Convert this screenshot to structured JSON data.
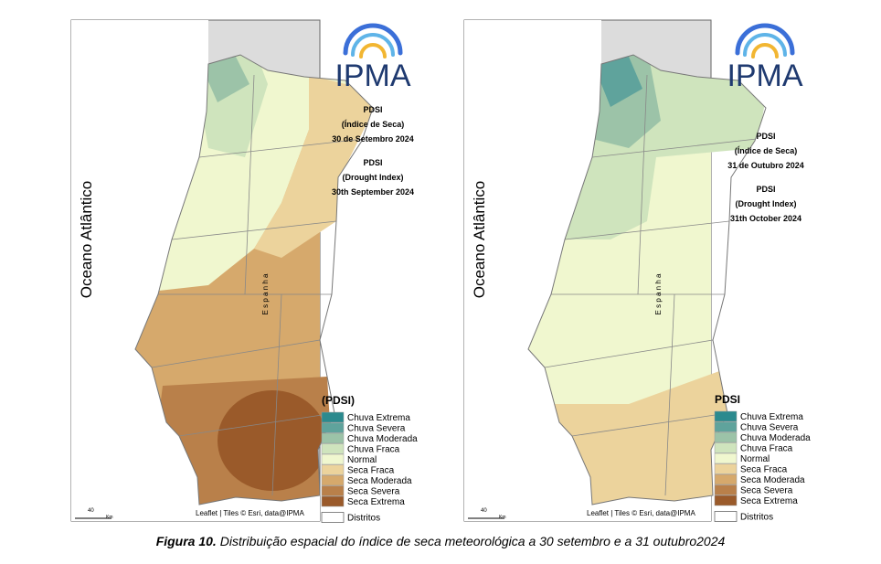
{
  "maps": [
    {
      "ocean_label": "Oceano Atlântico",
      "country_label": "E s p a n h a",
      "logo": "IPMA",
      "info_pt": [
        "PDSI",
        "(Índice de Seca)",
        "30 de Setembro 2024"
      ],
      "info_en": [
        "PDSI",
        "(Drought Index)",
        "30th September 2024"
      ],
      "legend": {
        "title": "(PDSI)",
        "items": [
          {
            "label": "Chuva Extrema",
            "color": "#2b8a8e"
          },
          {
            "label": "Chuva Severa",
            "color": "#5fa39c"
          },
          {
            "label": "Chuva Moderada",
            "color": "#9cc3a8"
          },
          {
            "label": "Chuva Fraca",
            "color": "#cfe4bd"
          },
          {
            "label": "Normal",
            "color": "#f0f7cf"
          },
          {
            "label": "Seca Fraca",
            "color": "#ecd39c"
          },
          {
            "label": "Seca Moderada",
            "color": "#d6a96c"
          },
          {
            "label": "Seca Severa",
            "color": "#b9804a"
          },
          {
            "label": "Seca Extrema",
            "color": "#9a5a2a"
          }
        ],
        "boundary": "Distritos"
      },
      "attribution": "Leaflet | Tiles © Esri, data@IPMA",
      "scale": {
        "value": "40",
        "unit": "Km"
      }
    },
    {
      "ocean_label": "Oceano Atlântico",
      "country_label": "E s p a n h a",
      "logo": "IPMA",
      "info_pt": [
        "PDSI",
        "(Índice de Seca)",
        "31 de Outubro 2024"
      ],
      "info_en": [
        "PDSI",
        "(Drought Index)",
        "31th October 2024"
      ],
      "legend": {
        "title": "PDSI",
        "items": [
          {
            "label": "Chuva Extrema",
            "color": "#2b8a8e"
          },
          {
            "label": "Chuva Severa",
            "color": "#5fa39c"
          },
          {
            "label": "Chuva Moderada",
            "color": "#9cc3a8"
          },
          {
            "label": "Chuva Fraca",
            "color": "#cfe4bd"
          },
          {
            "label": "Normal",
            "color": "#f0f7cf"
          },
          {
            "label": "Seca Fraca",
            "color": "#ecd39c"
          },
          {
            "label": "Seca Moderada",
            "color": "#d6a96c"
          },
          {
            "label": "Seca Severa",
            "color": "#b9804a"
          },
          {
            "label": "Seca Extrema",
            "color": "#9a5a2a"
          }
        ],
        "boundary": "Distritos"
      },
      "attribution": "Leaflet | Tiles © Esri, data@IPMA",
      "scale": {
        "value": "40",
        "unit": "Km"
      }
    }
  ],
  "caption": {
    "label": "Figura 10.",
    "text": " Distribuição espacial do índice de seca meteorológica a 30 setembro e a 31 outubro2024"
  }
}
